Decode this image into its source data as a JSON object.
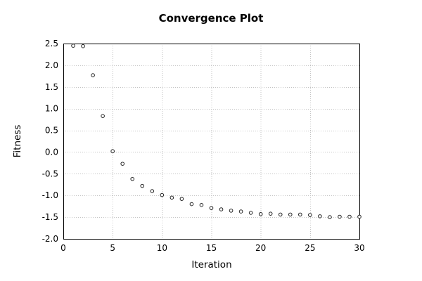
{
  "chart_data": {
    "type": "scatter",
    "title": "Convergence Plot",
    "xlabel": "Iteration",
    "ylabel": "Fitness",
    "xlim": [
      0,
      30
    ],
    "ylim": [
      -2.0,
      2.5
    ],
    "x_tick_values": [
      0,
      5,
      10,
      15,
      20,
      25,
      30
    ],
    "x_tick_labels": [
      "0",
      "5",
      "10",
      "15",
      "20",
      "25",
      "30"
    ],
    "y_tick_values": [
      2.5,
      2.0,
      1.5,
      1.0,
      0.5,
      0.0,
      -0.5,
      -1.0,
      -1.5,
      -2.0
    ],
    "y_tick_labels": [
      "2.5",
      "2.0",
      "1.5",
      "1.0",
      "0.5",
      "0.0",
      "-0.5",
      "-1.0",
      "-1.5",
      "-2.0"
    ],
    "grid": "dotted",
    "legend": "none",
    "marker": {
      "shape": "open-circle",
      "stroke_color": "#222222",
      "fill_color": "#ffffff",
      "radius": 2.3
    },
    "colors": {
      "frame": "#000000",
      "grid": "#c4c4c4",
      "background": "#ffffff",
      "text": "#000000"
    },
    "x": [
      1,
      2,
      3,
      4,
      5,
      6,
      7,
      8,
      9,
      10,
      11,
      12,
      13,
      14,
      15,
      16,
      17,
      18,
      19,
      20,
      21,
      22,
      23,
      24,
      25,
      26,
      27,
      28,
      29,
      30
    ],
    "y": [
      2.45,
      2.44,
      1.77,
      0.83,
      0.02,
      -0.27,
      -0.62,
      -0.78,
      -0.9,
      -0.99,
      -1.05,
      -1.08,
      -1.2,
      -1.22,
      -1.29,
      -1.32,
      -1.35,
      -1.37,
      -1.4,
      -1.43,
      -1.42,
      -1.44,
      -1.44,
      -1.44,
      -1.45,
      -1.48,
      -1.5,
      -1.49,
      -1.49,
      -1.49
    ]
  }
}
